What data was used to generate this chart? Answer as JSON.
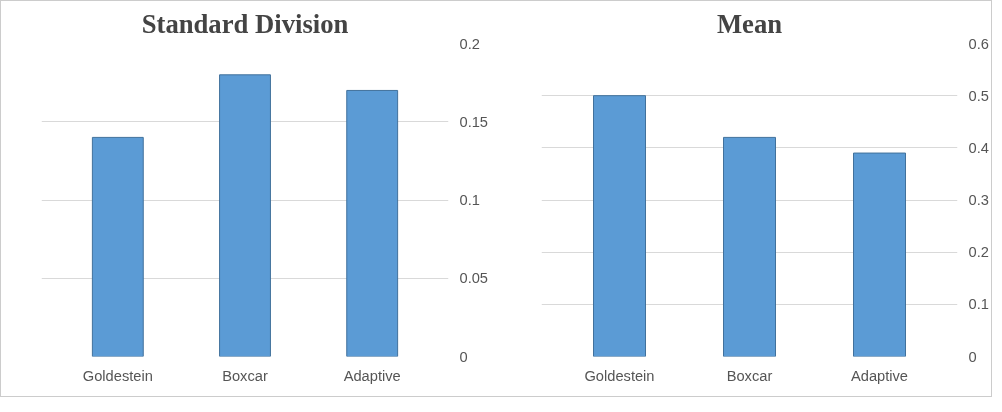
{
  "chart_data": [
    {
      "type": "bar",
      "title": "Standard Division",
      "categories": [
        "Goldestein",
        "Boxcar",
        "Adaptive"
      ],
      "values": [
        0.14,
        0.18,
        0.17
      ],
      "color": "#5b9bd5",
      "ylim": [
        0,
        0.2
      ],
      "yticks": [
        0,
        0.05,
        0.1,
        0.15,
        0.2
      ],
      "grid": "y"
    },
    {
      "type": "bar",
      "title": "Mean",
      "categories": [
        "Goldestein",
        "Boxcar",
        "Adaptive"
      ],
      "values": [
        0.5,
        0.42,
        0.39
      ],
      "color": "#5b9bd5",
      "ylim": [
        0,
        0.6
      ],
      "yticks": [
        0,
        0.1,
        0.2,
        0.3,
        0.4,
        0.5,
        0.6
      ],
      "grid": "y"
    }
  ]
}
